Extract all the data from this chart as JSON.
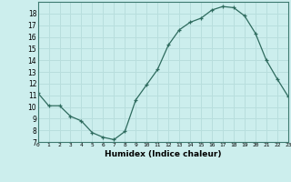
{
  "x": [
    0,
    1,
    2,
    3,
    4,
    5,
    6,
    7,
    8,
    9,
    10,
    11,
    12,
    13,
    14,
    15,
    16,
    17,
    18,
    19,
    20,
    21,
    22,
    23
  ],
  "y": [
    11.2,
    10.1,
    10.1,
    9.2,
    8.8,
    7.8,
    7.4,
    7.2,
    7.9,
    10.6,
    11.9,
    13.2,
    15.3,
    16.6,
    17.25,
    17.6,
    18.3,
    18.6,
    18.5,
    17.8,
    16.3,
    14.0,
    12.4,
    10.9
  ],
  "xlabel": "Humidex (Indice chaleur)",
  "ylim": [
    7,
    19
  ],
  "xlim": [
    0,
    23
  ],
  "yticks": [
    7,
    8,
    9,
    10,
    11,
    12,
    13,
    14,
    15,
    16,
    17,
    18
  ],
  "xticks": [
    0,
    1,
    2,
    3,
    4,
    5,
    6,
    7,
    8,
    9,
    10,
    11,
    12,
    13,
    14,
    15,
    16,
    17,
    18,
    19,
    20,
    21,
    22,
    23
  ],
  "line_color": "#2e6b5e",
  "marker": "+",
  "bg_color": "#cceeed",
  "grid_color": "#b8dedd",
  "spine_color": "#3d7a70"
}
